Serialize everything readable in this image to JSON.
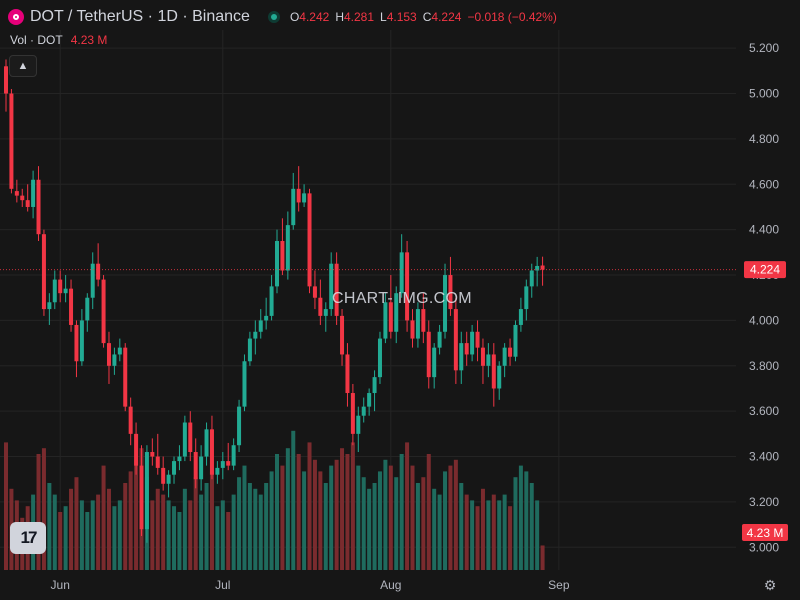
{
  "header": {
    "symbol_title": "DOT / TetherUS · 1D · Binance",
    "ohlc": {
      "o_label": "O",
      "o_value": "4.242",
      "h_label": "H",
      "h_value": "4.281",
      "l_label": "L",
      "l_value": "4.153",
      "c_label": "C",
      "c_value": "4.224",
      "change": "−0.018 (−0.42%)"
    }
  },
  "volume_legend": {
    "label": "Vol · DOT",
    "value": "4.23 M"
  },
  "watermark": "CHART- IMG.COM",
  "logo_text": "17",
  "colors": {
    "up": "#22ab94",
    "down": "#f23645",
    "background": "#161616",
    "grid": "#242424",
    "up_volume": "#1f6b5e",
    "down_volume": "#7a2b2e"
  },
  "icons": [
    "dot-coin-icon",
    "live-status-icon",
    "collapse-chevron-icon",
    "tradingview-logo-icon",
    "settings-gear-icon"
  ],
  "chart_data": {
    "type": "candlestick",
    "interval": "1D",
    "y_ticks": [
      "5.200",
      "5.000",
      "4.800",
      "4.600",
      "4.400",
      "4.200",
      "4.000",
      "3.800",
      "3.600",
      "3.400",
      "3.200",
      "3.000"
    ],
    "ylim": [
      2.9,
      5.28
    ],
    "x_labels": [
      {
        "label": "Jun",
        "index": 10
      },
      {
        "label": "Jul",
        "index": 40
      },
      {
        "label": "Aug",
        "index": 71
      },
      {
        "label": "Sep",
        "index": 102
      }
    ],
    "last_price": "4.224",
    "last_volume": "4.23 M",
    "volume_max_m": 25,
    "candles": [
      [
        5.12,
        5.15,
        4.92,
        5.0,
        22
      ],
      [
        5.0,
        5.02,
        4.56,
        4.58,
        14
      ],
      [
        4.57,
        4.62,
        4.52,
        4.55,
        12
      ],
      [
        4.55,
        4.58,
        4.5,
        4.53,
        9
      ],
      [
        4.53,
        4.6,
        4.48,
        4.5,
        11
      ],
      [
        4.5,
        4.66,
        4.45,
        4.62,
        13
      ],
      [
        4.62,
        4.68,
        4.35,
        4.38,
        20
      ],
      [
        4.38,
        4.4,
        4.02,
        4.05,
        21
      ],
      [
        4.05,
        4.12,
        3.98,
        4.08,
        15
      ],
      [
        4.08,
        4.22,
        4.05,
        4.18,
        13
      ],
      [
        4.18,
        4.22,
        4.08,
        4.12,
        10
      ],
      [
        4.12,
        4.2,
        4.08,
        4.14,
        11
      ],
      [
        4.14,
        4.18,
        3.95,
        3.98,
        14
      ],
      [
        3.98,
        4.0,
        3.75,
        3.82,
        16
      ],
      [
        3.82,
        4.05,
        3.8,
        4.0,
        12
      ],
      [
        4.0,
        4.12,
        3.95,
        4.1,
        10
      ],
      [
        4.1,
        4.3,
        4.05,
        4.25,
        12
      ],
      [
        4.25,
        4.34,
        4.15,
        4.18,
        13
      ],
      [
        4.18,
        4.2,
        3.88,
        3.9,
        18
      ],
      [
        3.9,
        3.95,
        3.72,
        3.8,
        14
      ],
      [
        3.8,
        3.88,
        3.76,
        3.85,
        11
      ],
      [
        3.85,
        3.92,
        3.82,
        3.88,
        12
      ],
      [
        3.88,
        3.9,
        3.6,
        3.62,
        15
      ],
      [
        3.62,
        3.66,
        3.45,
        3.5,
        17
      ],
      [
        3.5,
        3.55,
        3.32,
        3.36,
        19
      ],
      [
        3.36,
        3.45,
        3.05,
        3.08,
        21
      ],
      [
        3.08,
        3.45,
        3.02,
        3.42,
        16
      ],
      [
        3.42,
        3.48,
        3.36,
        3.4,
        12
      ],
      [
        3.4,
        3.5,
        3.32,
        3.35,
        14
      ],
      [
        3.35,
        3.4,
        3.25,
        3.28,
        13
      ],
      [
        3.28,
        3.34,
        3.22,
        3.32,
        12
      ],
      [
        3.32,
        3.4,
        3.28,
        3.38,
        11
      ],
      [
        3.38,
        3.45,
        3.34,
        3.4,
        10
      ],
      [
        3.4,
        3.58,
        3.38,
        3.55,
        14
      ],
      [
        3.55,
        3.6,
        3.38,
        3.42,
        12
      ],
      [
        3.42,
        3.48,
        3.26,
        3.3,
        16
      ],
      [
        3.3,
        3.45,
        3.25,
        3.4,
        13
      ],
      [
        3.4,
        3.55,
        3.36,
        3.52,
        15
      ],
      [
        3.52,
        3.58,
        3.3,
        3.32,
        17
      ],
      [
        3.32,
        3.38,
        3.28,
        3.35,
        11
      ],
      [
        3.35,
        3.42,
        3.3,
        3.38,
        12
      ],
      [
        3.38,
        3.46,
        3.34,
        3.36,
        10
      ],
      [
        3.36,
        3.48,
        3.34,
        3.45,
        13
      ],
      [
        3.45,
        3.65,
        3.42,
        3.62,
        16
      ],
      [
        3.62,
        3.85,
        3.6,
        3.82,
        18
      ],
      [
        3.82,
        3.95,
        3.8,
        3.92,
        15
      ],
      [
        3.92,
        4.0,
        3.85,
        3.95,
        14
      ],
      [
        3.95,
        4.05,
        3.92,
        4.0,
        13
      ],
      [
        4.0,
        4.1,
        3.96,
        4.02,
        15
      ],
      [
        4.02,
        4.2,
        4.0,
        4.15,
        17
      ],
      [
        4.15,
        4.4,
        4.12,
        4.35,
        20
      ],
      [
        4.35,
        4.45,
        4.2,
        4.22,
        18
      ],
      [
        4.22,
        4.48,
        4.18,
        4.42,
        21
      ],
      [
        4.42,
        4.65,
        4.4,
        4.58,
        24
      ],
      [
        4.58,
        4.68,
        4.48,
        4.52,
        20
      ],
      [
        4.52,
        4.6,
        4.5,
        4.56,
        17
      ],
      [
        4.56,
        4.58,
        4.12,
        4.15,
        22
      ],
      [
        4.15,
        4.22,
        4.05,
        4.1,
        19
      ],
      [
        4.1,
        4.18,
        3.98,
        4.02,
        17
      ],
      [
        4.02,
        4.08,
        3.95,
        4.05,
        15
      ],
      [
        4.05,
        4.3,
        4.02,
        4.25,
        18
      ],
      [
        4.25,
        4.3,
        3.98,
        4.02,
        19
      ],
      [
        4.02,
        4.05,
        3.8,
        3.85,
        21
      ],
      [
        3.85,
        3.9,
        3.62,
        3.68,
        20
      ],
      [
        3.68,
        3.72,
        3.45,
        3.5,
        22
      ],
      [
        3.5,
        3.62,
        3.42,
        3.58,
        18
      ],
      [
        3.58,
        3.66,
        3.55,
        3.62,
        16
      ],
      [
        3.62,
        3.7,
        3.58,
        3.68,
        14
      ],
      [
        3.68,
        3.78,
        3.6,
        3.75,
        15
      ],
      [
        3.75,
        3.95,
        3.72,
        3.92,
        17
      ],
      [
        3.92,
        4.12,
        3.9,
        4.08,
        19
      ],
      [
        4.08,
        4.2,
        3.92,
        3.95,
        18
      ],
      [
        3.95,
        4.15,
        3.9,
        4.12,
        16
      ],
      [
        4.12,
        4.38,
        4.1,
        4.3,
        20
      ],
      [
        4.3,
        4.35,
        3.95,
        4.0,
        22
      ],
      [
        4.0,
        4.05,
        3.88,
        3.92,
        18
      ],
      [
        3.92,
        4.08,
        3.88,
        4.05,
        15
      ],
      [
        4.05,
        4.12,
        3.9,
        3.95,
        16
      ],
      [
        3.95,
        4.0,
        3.7,
        3.75,
        20
      ],
      [
        3.75,
        3.9,
        3.7,
        3.88,
        14
      ],
      [
        3.88,
        3.98,
        3.85,
        3.95,
        13
      ],
      [
        3.95,
        4.25,
        3.92,
        4.2,
        17
      ],
      [
        4.2,
        4.28,
        4.02,
        4.05,
        18
      ],
      [
        4.05,
        4.1,
        3.72,
        3.78,
        19
      ],
      [
        3.78,
        3.95,
        3.72,
        3.9,
        15
      ],
      [
        3.9,
        3.95,
        3.8,
        3.85,
        13
      ],
      [
        3.85,
        3.98,
        3.82,
        3.95,
        12
      ],
      [
        3.95,
        4.0,
        3.82,
        3.88,
        11
      ],
      [
        3.88,
        3.92,
        3.72,
        3.8,
        14
      ],
      [
        3.8,
        3.9,
        3.75,
        3.85,
        12
      ],
      [
        3.85,
        3.9,
        3.62,
        3.7,
        13
      ],
      [
        3.7,
        3.82,
        3.65,
        3.8,
        12
      ],
      [
        3.8,
        3.9,
        3.75,
        3.88,
        13
      ],
      [
        3.88,
        3.92,
        3.8,
        3.84,
        11
      ],
      [
        3.84,
        4.0,
        3.82,
        3.98,
        16
      ],
      [
        3.98,
        4.1,
        3.95,
        4.05,
        18
      ],
      [
        4.05,
        4.18,
        4.0,
        4.15,
        17
      ],
      [
        4.15,
        4.25,
        4.1,
        4.22,
        15
      ],
      [
        4.22,
        4.28,
        4.15,
        4.24,
        12
      ],
      [
        4.242,
        4.281,
        4.153,
        4.224,
        4.23
      ]
    ]
  }
}
